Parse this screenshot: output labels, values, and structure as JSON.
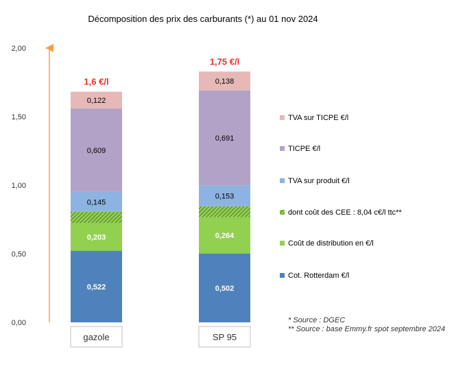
{
  "chart_data": {
    "type": "bar",
    "stacked": true,
    "title": "Décomposition des prix des carburants (*) au 01 nov 2024",
    "ylim": [
      0,
      2.0
    ],
    "y_ticks": [
      "0,00",
      "0,50",
      "1,00",
      "1,50",
      "2,00"
    ],
    "grid": false,
    "legend_position": "right",
    "categories": [
      "gazole",
      "SP 95"
    ],
    "totals": [
      "1,6 €/l",
      "1,75 €/l"
    ],
    "series": [
      {
        "name": "Cot. Rotterdam €/l",
        "color": "#4f81bd",
        "values": [
          0.522,
          0.502
        ],
        "labels": [
          "0,522",
          "0,502"
        ]
      },
      {
        "name": "Coût de distribution en €/l",
        "color": "#92d050",
        "values": [
          0.203,
          0.264
        ],
        "labels": [
          "0,203",
          "0,264"
        ]
      },
      {
        "name": "dont coût des CEE : 8,04 c€/l ttc**",
        "color": "#77a846",
        "pattern": "hatched",
        "values": [
          0.0804,
          0.0804
        ],
        "labels": [
          "",
          ""
        ]
      },
      {
        "name": "TVA sur produit €/l",
        "color": "#8db3e2",
        "values": [
          0.145,
          0.153
        ],
        "labels": [
          "0,145",
          "0,153"
        ]
      },
      {
        "name": "TICPE €/l",
        "color": "#b3a2c7",
        "values": [
          0.609,
          0.691
        ],
        "labels": [
          "0,609",
          "0,691"
        ]
      },
      {
        "name": "TVA sur TICPE €/l",
        "color": "#e6b9b8",
        "values": [
          0.122,
          0.138
        ],
        "labels": [
          "0,122",
          "0,138"
        ]
      }
    ],
    "legend_order": [
      5,
      4,
      3,
      2,
      1,
      0
    ],
    "annotations": [
      "* Source : DGEC",
      "** Source : base Emmy.fr spot  septembre 2024"
    ]
  },
  "colors": {
    "arrow": "#f5a04a",
    "total_label": "#e8302a"
  }
}
